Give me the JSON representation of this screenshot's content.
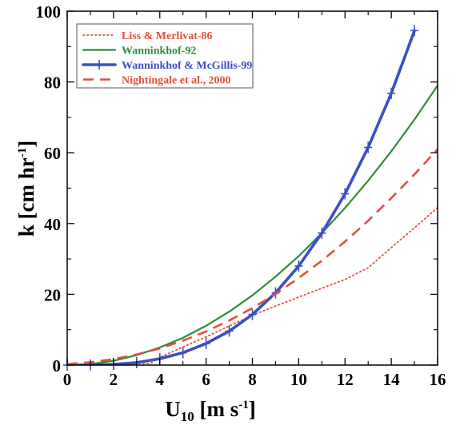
{
  "chart_data": {
    "type": "line",
    "xlabel": {
      "main": "U",
      "sub": "10",
      "rest": " [m s",
      "sup": "-1",
      "end": "]"
    },
    "ylabel": {
      "main": "k [cm hr",
      "sup": "-1",
      "end": "]"
    },
    "xlim": [
      0,
      16
    ],
    "ylim": [
      0,
      100
    ],
    "x_ticks": [
      0,
      2,
      4,
      6,
      8,
      10,
      12,
      14,
      16
    ],
    "y_ticks": [
      0,
      20,
      40,
      60,
      80,
      100
    ],
    "grid": false,
    "legend_position": "top-left",
    "series": [
      {
        "name": "Liss & Merlivat-86",
        "color": "#e0503a",
        "style": "dotted",
        "x": [
          0,
          2,
          3.6,
          4,
          6,
          8,
          10,
          12,
          13,
          14,
          15,
          16
        ],
        "y": [
          0,
          0.2,
          0.5,
          2.2,
          8,
          14.1,
          19.2,
          24.2,
          27.5,
          33.2,
          38.8,
          44.5
        ]
      },
      {
        "name": "Wanninkhof-92",
        "color": "#2e8b3a",
        "style": "solid",
        "x": [
          0,
          1,
          2,
          3,
          4,
          5,
          6,
          7,
          8,
          9,
          10,
          11,
          12,
          13,
          14,
          15,
          16
        ],
        "y": [
          0,
          0.3,
          1.2,
          2.8,
          5,
          7.7,
          11.1,
          15.1,
          19.7,
          25,
          30.8,
          37.3,
          44.4,
          52.1,
          60.4,
          69.4,
          79
        ]
      },
      {
        "name": "Wanninkhof & McGillis-99",
        "color": "#3b4fc4",
        "style": "solid-markers",
        "x": [
          0,
          1,
          2,
          3,
          4,
          5,
          6,
          7,
          8,
          9,
          10,
          11,
          12,
          13,
          14,
          15
        ],
        "y": [
          0,
          0.03,
          0.2,
          0.7,
          1.8,
          3.5,
          6.1,
          9.6,
          14.3,
          20.4,
          28,
          37.3,
          48.4,
          61.5,
          76.8,
          94.5
        ]
      },
      {
        "name": "Nightingale et al., 2000",
        "color": "#e0503a",
        "style": "dashed",
        "x": [
          0,
          1,
          2,
          3,
          4,
          5,
          6,
          7,
          8,
          9,
          10,
          11,
          12,
          13,
          14,
          15,
          16
        ],
        "y": [
          0.3,
          0.8,
          1.7,
          3,
          4.7,
          6.9,
          9.5,
          12.6,
          16.1,
          20.1,
          24.6,
          29.5,
          34.9,
          40.8,
          47.2,
          53.9,
          61
        ]
      }
    ]
  }
}
